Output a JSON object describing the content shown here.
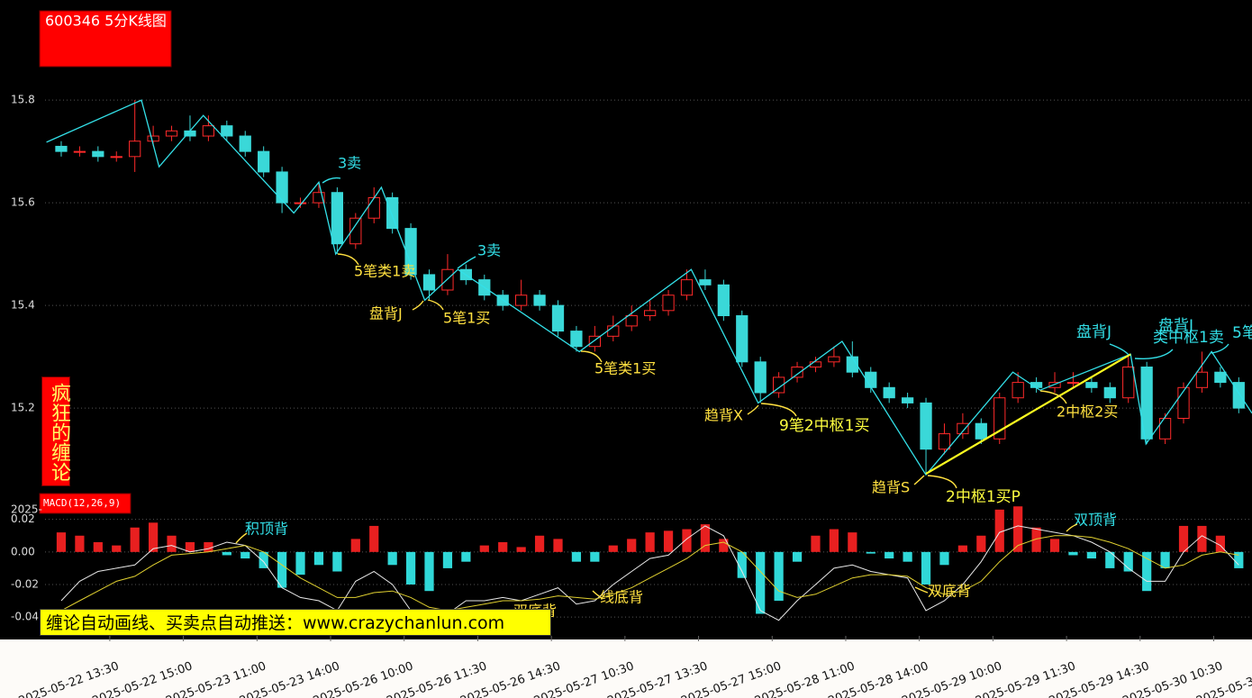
{
  "banner": "缠论自动画线、买卖点自动推送：www.crazychanlun.com",
  "chart_data": [
    {
      "type": "candlestick",
      "title": "600346 5分K线图",
      "side_label": "疯狂的缠论",
      "up_color": "#ff2a2a",
      "down_color": "#3ad8d8",
      "grid": true,
      "xlim": [
        -0.22,
        16.18
      ],
      "ylim": [
        15.03,
        15.995
      ],
      "yticks": [
        15.2,
        15.4,
        15.6,
        15.8
      ],
      "xticks": [
        {
          "value": 0.66,
          "label": "2025-05-22 13:30"
        },
        {
          "value": 1.66,
          "label": "2025-05-22 15:00"
        },
        {
          "value": 2.66,
          "label": "2025-05-23 11:00"
        },
        {
          "value": 3.66,
          "label": "2025-05-23 14:00"
        },
        {
          "value": 4.66,
          "label": "2025-05-26 10:00"
        },
        {
          "value": 5.66,
          "label": "2025-05-26 11:30"
        },
        {
          "value": 6.66,
          "label": "2025-05-26 14:30"
        },
        {
          "value": 7.66,
          "label": "2025-05-27 10:30"
        },
        {
          "value": 8.66,
          "label": "2025-05-27 13:30"
        },
        {
          "value": 9.66,
          "label": "2025-05-27 15:00"
        },
        {
          "value": 10.66,
          "label": "2025-05-28 11:00"
        },
        {
          "value": 11.66,
          "label": "2025-05-28 14:00"
        },
        {
          "value": 12.66,
          "label": "2025-05-29 10:00"
        },
        {
          "value": 13.66,
          "label": "2025-05-29 11:30"
        },
        {
          "value": 14.66,
          "label": "2025-05-29 14:30"
        },
        {
          "value": 15.66,
          "label": "2025-05-30 10:30"
        },
        {
          "value": 16.66,
          "label": "2025-05-30"
        }
      ],
      "x": [
        0,
        0.25,
        0.5,
        0.75,
        1,
        1.25,
        1.5,
        1.75,
        2,
        2.25,
        2.5,
        2.75,
        3,
        3.25,
        3.5,
        3.75,
        4,
        4.25,
        4.5,
        4.75,
        5,
        5.25,
        5.5,
        5.75,
        6,
        6.25,
        6.5,
        6.75,
        7,
        7.25,
        7.5,
        7.75,
        8,
        8.25,
        8.5,
        8.75,
        9,
        9.25,
        9.5,
        9.75,
        10,
        10.25,
        10.5,
        10.75,
        11,
        11.25,
        11.5,
        11.75,
        12,
        12.25,
        12.5,
        12.75,
        13,
        13.25,
        13.5,
        13.75,
        14,
        14.25,
        14.5,
        14.75,
        15,
        15.25,
        15.5,
        15.75,
        16
      ],
      "open": [
        15.71,
        15.7,
        15.7,
        15.69,
        15.69,
        15.72,
        15.73,
        15.74,
        15.73,
        15.75,
        15.73,
        15.7,
        15.66,
        15.6,
        15.6,
        15.62,
        15.52,
        15.57,
        15.61,
        15.55,
        15.46,
        15.43,
        15.47,
        15.45,
        15.42,
        15.4,
        15.42,
        15.4,
        15.35,
        15.32,
        15.34,
        15.36,
        15.38,
        15.39,
        15.42,
        15.45,
        15.44,
        15.38,
        15.29,
        15.23,
        15.26,
        15.28,
        15.29,
        15.3,
        15.27,
        15.24,
        15.22,
        15.21,
        15.12,
        15.15,
        15.17,
        15.14,
        15.22,
        15.25,
        15.24,
        15.25,
        15.25,
        15.24,
        15.22,
        15.28,
        15.14,
        15.18,
        15.24,
        15.27,
        15.25
      ],
      "high": [
        15.72,
        15.71,
        15.71,
        15.7,
        15.8,
        15.75,
        15.75,
        15.77,
        15.77,
        15.76,
        15.74,
        15.71,
        15.67,
        15.61,
        15.64,
        15.63,
        15.58,
        15.63,
        15.62,
        15.56,
        15.47,
        15.5,
        15.48,
        15.46,
        15.43,
        15.45,
        15.43,
        15.41,
        15.36,
        15.36,
        15.38,
        15.4,
        15.41,
        15.43,
        15.47,
        15.47,
        15.45,
        15.39,
        15.3,
        15.27,
        15.29,
        15.3,
        15.32,
        15.33,
        15.28,
        15.25,
        15.23,
        15.22,
        15.17,
        15.19,
        15.18,
        15.23,
        15.27,
        15.26,
        15.27,
        15.27,
        15.26,
        15.25,
        15.3,
        15.29,
        15.19,
        15.25,
        15.31,
        15.28,
        15.26
      ],
      "low": [
        15.69,
        15.69,
        15.68,
        15.68,
        15.66,
        15.71,
        15.72,
        15.72,
        15.72,
        15.72,
        15.69,
        15.65,
        15.58,
        15.59,
        15.59,
        15.5,
        15.51,
        15.56,
        15.54,
        15.45,
        15.41,
        15.42,
        15.44,
        15.41,
        15.39,
        15.39,
        15.39,
        15.34,
        15.31,
        15.31,
        15.33,
        15.35,
        15.37,
        15.38,
        15.41,
        15.43,
        15.37,
        15.28,
        15.21,
        15.22,
        15.25,
        15.27,
        15.28,
        15.26,
        15.23,
        15.21,
        15.2,
        15.07,
        15.11,
        15.14,
        15.13,
        15.13,
        15.21,
        15.23,
        15.23,
        15.24,
        15.23,
        15.21,
        15.21,
        15.13,
        15.13,
        15.17,
        15.23,
        15.24,
        15.19
      ],
      "close": [
        15.7,
        15.7,
        15.69,
        15.69,
        15.72,
        15.73,
        15.74,
        15.73,
        15.75,
        15.73,
        15.7,
        15.66,
        15.6,
        15.6,
        15.62,
        15.52,
        15.57,
        15.61,
        15.55,
        15.46,
        15.43,
        15.47,
        15.45,
        15.42,
        15.4,
        15.42,
        15.4,
        15.35,
        15.32,
        15.34,
        15.36,
        15.38,
        15.39,
        15.42,
        15.45,
        15.44,
        15.38,
        15.29,
        15.23,
        15.26,
        15.28,
        15.29,
        15.3,
        15.27,
        15.24,
        15.22,
        15.21,
        15.12,
        15.15,
        15.17,
        15.14,
        15.22,
        15.25,
        15.24,
        15.25,
        15.25,
        15.24,
        15.22,
        15.28,
        15.14,
        15.18,
        15.24,
        15.27,
        15.25,
        15.2
      ],
      "strokes": {
        "color": "#33e0e8",
        "x": [
          -0.2,
          1.09,
          1.33,
          1.93,
          3.16,
          3.5,
          3.73,
          4.35,
          4.94,
          5.39,
          7.04,
          8.56,
          9.47,
          10.61,
          11.75,
          12.93,
          13.3,
          14.53,
          14.74,
          15.63,
          16.18
        ],
        "values": [
          15.718,
          15.8,
          15.67,
          15.77,
          15.58,
          15.64,
          15.5,
          15.63,
          15.41,
          15.47,
          15.31,
          15.47,
          15.21,
          15.33,
          15.07,
          15.27,
          15.235,
          15.305,
          15.13,
          15.31,
          15.19
        ]
      },
      "segment": {
        "color": "#ffff20",
        "x": [
          11.75,
          14.53
        ],
        "values": [
          15.072,
          15.305
        ]
      },
      "annotations": [
        {
          "text": "3卖",
          "color": "#33e0e8"
        },
        {
          "text": "3卖",
          "color": "#33e0e8"
        },
        {
          "text": "5笔类1卖",
          "color": "#ffe040"
        },
        {
          "text": "盘背J",
          "color": "#ffe040"
        },
        {
          "text": "5笔1买",
          "color": "#ffe040"
        },
        {
          "text": "5笔类1买",
          "color": "#ffe040"
        },
        {
          "text": "趋背X",
          "color": "#ffe040"
        },
        {
          "text": "9笔2中枢1买",
          "color": "#ffff40"
        },
        {
          "text": "趋背S",
          "color": "#ffe040"
        },
        {
          "text": "2中枢1买P",
          "color": "#ffff40"
        },
        {
          "text": "2中枢2买",
          "color": "#ffe040"
        },
        {
          "text": "盘背J",
          "color": "#33e0e8"
        },
        {
          "text": "盘背J",
          "color": "#33e0e8"
        },
        {
          "text": "类中枢1卖",
          "color": "#33e0e8"
        },
        {
          "text": "5笔",
          "color": "#33e0e8"
        }
      ]
    },
    {
      "type": "macd",
      "title": "MACD(12,26,9)",
      "clipped_label": "2025-",
      "xlim": [
        -0.22,
        16.18
      ],
      "ylim": [
        -0.051,
        0.032
      ],
      "grid": true,
      "yticks": [
        -0.04,
        -0.02,
        {
          "value": 0,
          "label": "0.00"
        },
        0.02
      ],
      "x": [
        0,
        0.25,
        0.5,
        0.75,
        1,
        1.25,
        1.5,
        1.75,
        2,
        2.25,
        2.5,
        2.75,
        3,
        3.25,
        3.5,
        3.75,
        4,
        4.25,
        4.5,
        4.75,
        5,
        5.25,
        5.5,
        5.75,
        6,
        6.25,
        6.5,
        6.75,
        7,
        7.25,
        7.5,
        7.75,
        8,
        8.25,
        8.5,
        8.75,
        9,
        9.25,
        9.5,
        9.75,
        10,
        10.25,
        10.5,
        10.75,
        11,
        11.25,
        11.5,
        11.75,
        12,
        12.25,
        12.5,
        12.75,
        13,
        13.25,
        13.5,
        13.75,
        14,
        14.25,
        14.5,
        14.75,
        15,
        15.25,
        15.5,
        15.75,
        16
      ],
      "histogram": {
        "up_color": "#e82020",
        "down_color": "#30d8d8",
        "values": [
          0.012,
          0.01,
          0.006,
          0.004,
          0.015,
          0.018,
          0.01,
          0.006,
          0.006,
          -0.002,
          -0.004,
          -0.01,
          -0.022,
          -0.014,
          -0.008,
          -0.012,
          0.008,
          0.016,
          -0.008,
          -0.02,
          -0.024,
          -0.01,
          -0.006,
          0.004,
          0.006,
          0.003,
          0.01,
          0.008,
          -0.006,
          -0.006,
          0.004,
          0.008,
          0.012,
          0.013,
          0.014,
          0.017,
          0.008,
          -0.016,
          -0.038,
          -0.03,
          -0.006,
          0.01,
          0.014,
          0.012,
          -0.001,
          -0.004,
          -0.006,
          -0.02,
          -0.008,
          0.004,
          0.01,
          0.026,
          0.028,
          0.015,
          0.008,
          -0.002,
          -0.004,
          -0.01,
          -0.012,
          -0.024,
          -0.01,
          0.016,
          0.016,
          0.01,
          -0.01
        ]
      },
      "series": [
        {
          "color": "#e8e8e8",
          "values": [
            -0.03,
            -0.018,
            -0.012,
            -0.01,
            -0.008,
            0.002,
            0.004,
            0.0,
            0.002,
            0.006,
            0.004,
            -0.006,
            -0.022,
            -0.028,
            -0.03,
            -0.036,
            -0.018,
            -0.012,
            -0.02,
            -0.036,
            -0.042,
            -0.038,
            -0.03,
            -0.03,
            -0.028,
            -0.03,
            -0.026,
            -0.022,
            -0.032,
            -0.03,
            -0.02,
            -0.012,
            -0.004,
            -0.002,
            0.008,
            0.016,
            0.01,
            -0.012,
            -0.036,
            -0.042,
            -0.03,
            -0.02,
            -0.01,
            -0.008,
            -0.012,
            -0.014,
            -0.016,
            -0.036,
            -0.03,
            -0.02,
            -0.006,
            0.012,
            0.016,
            0.014,
            0.012,
            0.01,
            0.006,
            0.0,
            -0.01,
            -0.018,
            -0.018,
            0.0,
            0.01,
            0.004,
            -0.008
          ]
        },
        {
          "color": "#e0d030",
          "values": [
            -0.036,
            -0.03,
            -0.024,
            -0.018,
            -0.015,
            -0.008,
            -0.002,
            -0.001,
            0.0,
            0.002,
            0.004,
            0.0,
            -0.008,
            -0.016,
            -0.022,
            -0.028,
            -0.028,
            -0.025,
            -0.024,
            -0.028,
            -0.034,
            -0.036,
            -0.034,
            -0.032,
            -0.03,
            -0.03,
            -0.029,
            -0.027,
            -0.028,
            -0.029,
            -0.026,
            -0.022,
            -0.016,
            -0.01,
            -0.004,
            0.004,
            0.006,
            0.0,
            -0.012,
            -0.024,
            -0.028,
            -0.026,
            -0.021,
            -0.016,
            -0.014,
            -0.014,
            -0.015,
            -0.022,
            -0.026,
            -0.024,
            -0.018,
            -0.006,
            0.004,
            0.008,
            0.01,
            0.01,
            0.009,
            0.006,
            0.002,
            -0.004,
            -0.01,
            -0.008,
            -0.002,
            0.0,
            -0.002
          ]
        }
      ],
      "annotations": [
        {
          "text": "积顶背",
          "color": "#33e0e8"
        },
        {
          "text": "双顶背",
          "color": "#33e0e8"
        },
        {
          "text": "线底背",
          "color": "#ffe040"
        },
        {
          "text": "双底背",
          "color": "#ffe040"
        },
        {
          "text": "双底背",
          "color": "#ffe040"
        }
      ]
    }
  ]
}
